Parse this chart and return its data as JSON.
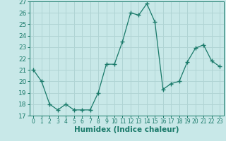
{
  "x": [
    0,
    1,
    2,
    3,
    4,
    5,
    6,
    7,
    8,
    9,
    10,
    11,
    12,
    13,
    14,
    15,
    16,
    17,
    18,
    19,
    20,
    21,
    22,
    23
  ],
  "y": [
    21,
    20,
    18,
    17.5,
    18,
    17.5,
    17.5,
    17.5,
    19,
    21.5,
    21.5,
    23.5,
    26,
    25.8,
    26.8,
    25.2,
    19.3,
    19.8,
    20,
    21.7,
    22.9,
    23.2,
    21.8,
    21.3
  ],
  "line_color": "#1a7a6a",
  "marker": "+",
  "marker_size": 4,
  "background_color": "#c8e8e8",
  "grid_color": "#b0d4d4",
  "xlabel": "Humidex (Indice chaleur)",
  "ylim": [
    17,
    27
  ],
  "xlim": [
    -0.5,
    23.5
  ],
  "yticks": [
    17,
    18,
    19,
    20,
    21,
    22,
    23,
    24,
    25,
    26,
    27
  ],
  "xticks": [
    0,
    1,
    2,
    3,
    4,
    5,
    6,
    7,
    8,
    9,
    10,
    11,
    12,
    13,
    14,
    15,
    16,
    17,
    18,
    19,
    20,
    21,
    22,
    23
  ],
  "ytick_label_size": 6.5,
  "xtick_label_size": 5.5,
  "xlabel_size": 7.5,
  "xlabel_fontweight": "bold"
}
